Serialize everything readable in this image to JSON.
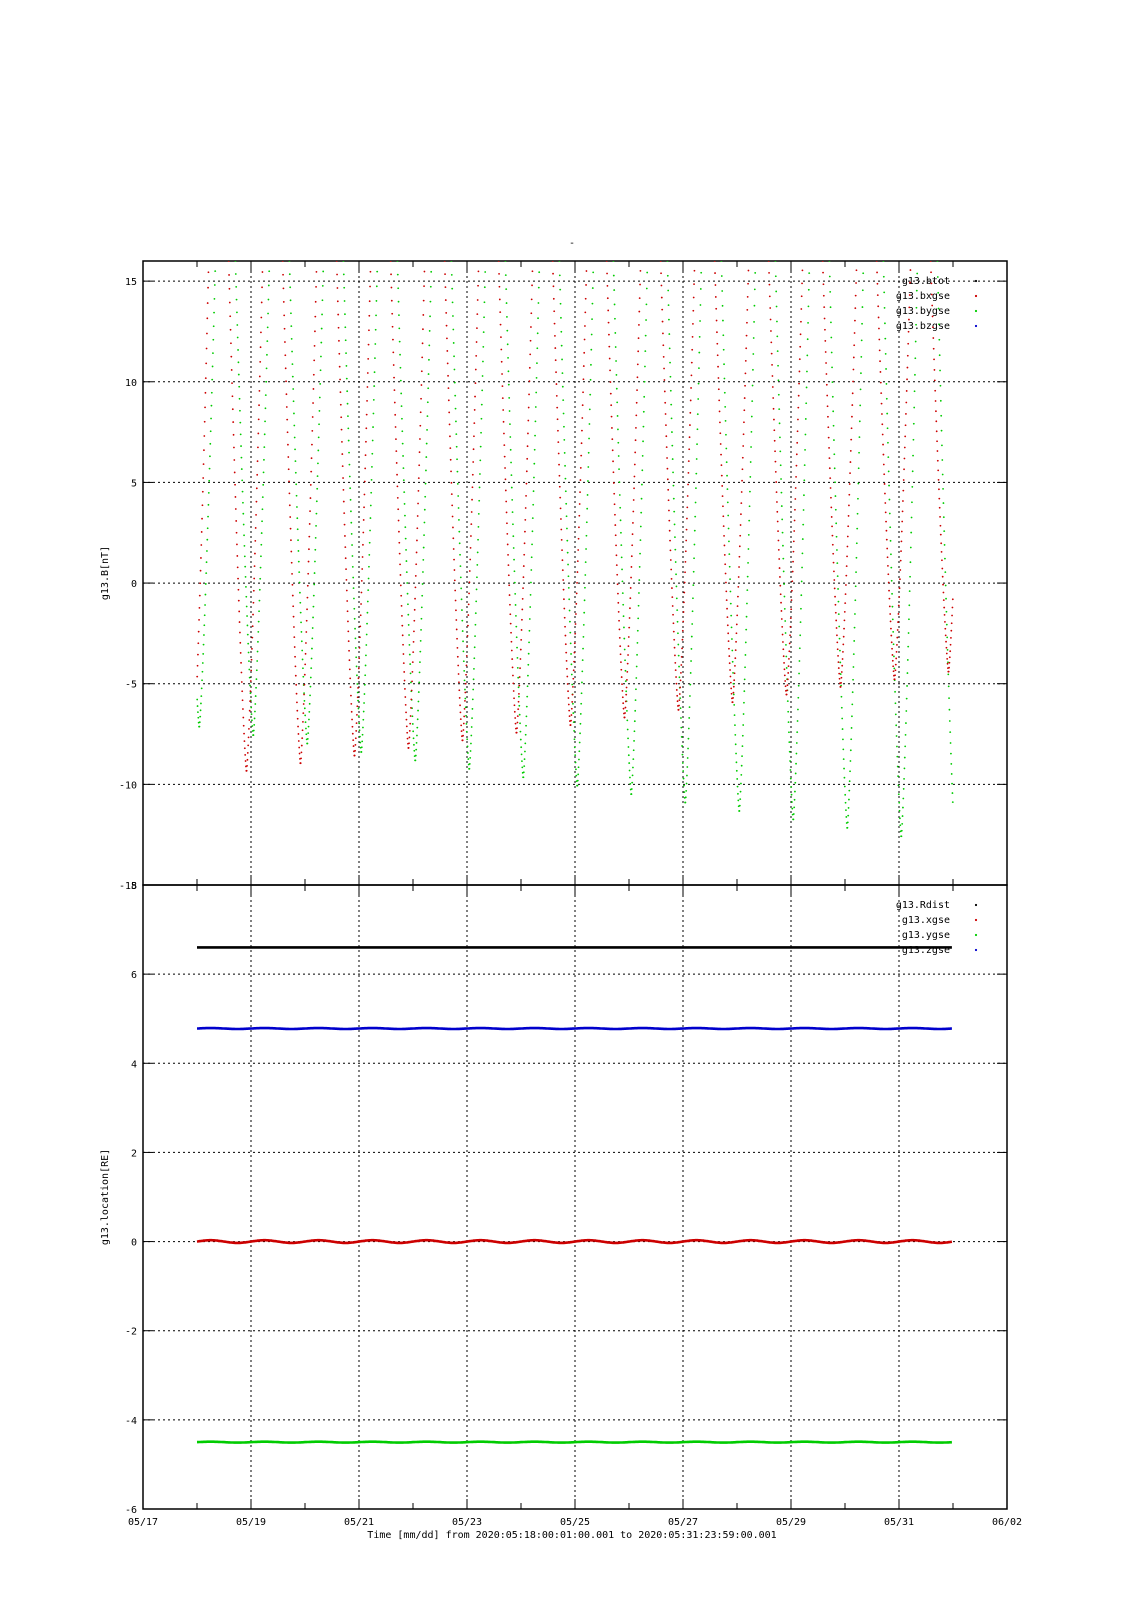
{
  "header_mark": "-",
  "xaxis": {
    "tick_labels": [
      "05/17",
      "05/19",
      "05/21",
      "05/23",
      "05/25",
      "05/27",
      "05/29",
      "05/31",
      "06/02"
    ],
    "label": "Time [mm/dd]  from 2020:05:18:00:01:00.001  to  2020:05:31:23:59:00.001"
  },
  "colors": {
    "btot": "#000000",
    "bxgse": "#cc0000",
    "bygse": "#00cc00",
    "bzgse": "#0000cc",
    "rdist": "#000000",
    "xgse": "#cc0000",
    "ygse": "#00cc00",
    "zgse": "#0000cc"
  },
  "chart_data": [
    {
      "type": "scatter",
      "ylabel": "g13.B[nT]",
      "ylim": [
        -15,
        16
      ],
      "yticks": [
        -15,
        -10,
        -5,
        0,
        5,
        10,
        15
      ],
      "xlim": [
        "2020-05-17",
        "2020-06-02"
      ],
      "grid": true,
      "legend_position": "top-right",
      "series": [
        {
          "name": "g13.btot",
          "color_key": "btot",
          "model": "above plotted range"
        },
        {
          "name": "g13.bxgse",
          "color_key": "bxgse",
          "model": "daily cusp",
          "first_min": {
            "time": "2020-05-18 22:00",
            "value": -9.4
          },
          "min_trend_per_day": 0.38,
          "rise_to": 16
        },
        {
          "name": "g13.bygse",
          "color_key": "bygse",
          "model": "daily cusp",
          "first_min": {
            "time": "2020-05-18 01:00",
            "value": -7.2
          },
          "min_trend_per_day": -0.42,
          "rise_to": 16
        },
        {
          "name": "g13.bzgse",
          "color_key": "bzgse",
          "model": "above plotted range"
        }
      ]
    },
    {
      "type": "scatter",
      "ylabel": "g13.location[RE]",
      "ylim": [
        -6,
        8
      ],
      "yticks": [
        -6,
        -4,
        -2,
        0,
        2,
        4,
        6,
        8
      ],
      "xlim": [
        "2020-05-17",
        "2020-06-02"
      ],
      "grid": true,
      "legend_position": "top-right",
      "series": [
        {
          "name": "g13.Rdist",
          "color_key": "rdist",
          "value": 6.6,
          "amplitude": 0.0
        },
        {
          "name": "g13.xgse",
          "color_key": "xgse",
          "value": 0.0,
          "amplitude": 0.03
        },
        {
          "name": "g13.ygse",
          "color_key": "ygse",
          "value": -4.5,
          "amplitude": 0.01
        },
        {
          "name": "g13.zgse",
          "color_key": "zgse",
          "value": 4.78,
          "amplitude": 0.01
        }
      ]
    }
  ]
}
